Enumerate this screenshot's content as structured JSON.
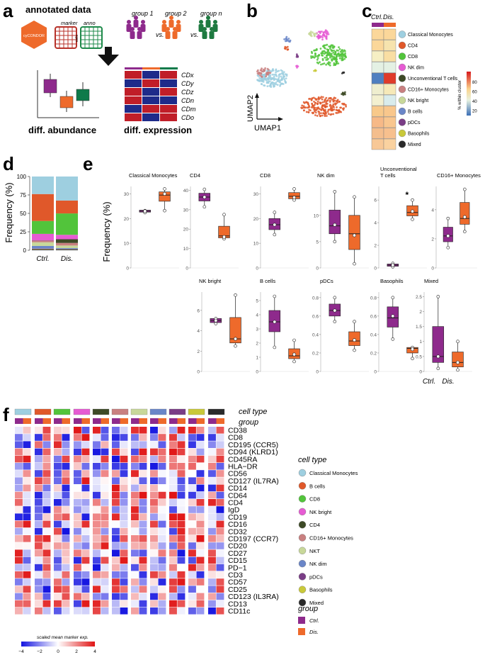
{
  "panel_labels": {
    "a": "a",
    "b": "b",
    "c": "c",
    "d": "d",
    "e": "e",
    "f": "f"
  },
  "panel_a": {
    "title": "annotated data",
    "hex_label": "cyCONDOR",
    "marker_label": "marker",
    "anno_label": "anno",
    "cells_label": "cells",
    "groups": [
      "group 1",
      "group 2",
      "group n"
    ],
    "vs_label": "vs.",
    "diff_abundance_label": "diff. abundance",
    "diff_expression_label": "diff. expression",
    "cd_rows": [
      "CDx",
      "CDy",
      "CDz",
      "CDn",
      "CDm",
      "CDo"
    ]
  },
  "panel_b": {
    "xlabel": "UMAP1",
    "ylabel": "UMAP2"
  },
  "panel_c": {
    "header_ctrl": "Ctrl.",
    "header_dis": "Dis.",
    "legend_title": "% within cluster",
    "scale_ticks": [
      "80",
      "60",
      "40",
      "20"
    ],
    "rows": [
      "Classical Monocytes",
      "CD4",
      "CD8",
      "NK dim",
      "Unconventional T cells",
      "CD16+ Monocytes",
      "NK bright",
      "B cells",
      "pDCs",
      "Basophils",
      "Mixed"
    ],
    "colors": [
      "#9ECFE0",
      "#E0582A",
      "#52C43B",
      "#E65BD3",
      "#3D4A26",
      "#C98080",
      "#C8D89A",
      "#6A86C8",
      "#7A3D86",
      "#C9C93A",
      "#2A2A2A"
    ],
    "ctrl_fill": [
      "#FBD79A",
      "#FBD79A",
      "#F6EFC4",
      "#E4F1E4",
      "#4F7FC0",
      "#EFEECF",
      "#F3F0D0",
      "#F8C98A",
      "#F7B987",
      "#F4BE8D",
      "#F8C896"
    ],
    "dis_fill": [
      "#FBD79A",
      "#F6E3AE",
      "#F9DEA3",
      "#E4F1E4",
      "#E03B2A",
      "#F6E9B8",
      "#D9ECEC",
      "#F9C78C",
      "#F9C68F",
      "#F7C08E",
      "#FAD2A0"
    ]
  },
  "panel_d": {
    "ylabel": "Frequency (%)",
    "yticks": [
      "0",
      "25",
      "50",
      "75",
      "100"
    ],
    "groups": [
      "Ctrl.",
      "Dis."
    ],
    "chart_data": {
      "type": "bar",
      "stacked": true,
      "categories": [
        "Ctrl.",
        "Dis."
      ],
      "ylim": [
        0,
        100
      ],
      "series": [
        {
          "name": "Mixed",
          "values": [
            1,
            1
          ],
          "color": "#2A2A2A"
        },
        {
          "name": "Basophils",
          "values": [
            0.6,
            0.3
          ],
          "color": "#C9C93A"
        },
        {
          "name": "pDCs",
          "values": [
            0.7,
            0.4
          ],
          "color": "#7A3D86"
        },
        {
          "name": "B cells",
          "values": [
            3.5,
            1.2
          ],
          "color": "#6A86C8"
        },
        {
          "name": "NK bright",
          "values": [
            5,
            3.5
          ],
          "color": "#C8D89A"
        },
        {
          "name": "CD16+ Monocytes",
          "values": [
            2.2,
            3.5
          ],
          "color": "#C98080"
        },
        {
          "name": "Unconventional T cells",
          "values": [
            0.2,
            5
          ],
          "color": "#3D4A26"
        },
        {
          "name": "NK dim",
          "values": [
            9,
            6
          ],
          "color": "#E65BD3"
        },
        {
          "name": "CD8",
          "values": [
            17.5,
            29
          ],
          "color": "#52C43B"
        },
        {
          "name": "CD4",
          "values": [
            36.5,
            17.5
          ],
          "color": "#E0582A"
        },
        {
          "name": "Classical Monocytes",
          "values": [
            23.8,
            32.6
          ],
          "color": "#9ECFE0"
        }
      ]
    }
  },
  "panel_e": {
    "ylabel": "Frequency (%)",
    "ctrl_label": "Ctrl.",
    "dis_label": "Dis.",
    "chart_data": {
      "type": "box",
      "groups": [
        "Ctrl.",
        "Dis."
      ],
      "colors": {
        "Ctrl.": "#8E2A8C",
        "Dis.": "#EE6A2B"
      },
      "panels": [
        {
          "title": "Classical Monocytes",
          "yticks": [
            0,
            10,
            20,
            30
          ],
          "ylim": [
            0,
            33
          ],
          "ctrl": {
            "q1": 22.6,
            "med": 23,
            "q3": 23.4,
            "lo": 22.6,
            "hi": 23.4,
            "mean": 23,
            "pts": [
              22.4,
              23.2
            ]
          },
          "dis": {
            "q1": 27,
            "med": 29.5,
            "q3": 30.8,
            "lo": 23.2,
            "hi": 32.0,
            "mean": 30,
            "pts": [
              23.2,
              32.0
            ]
          }
        },
        {
          "title": "CD4",
          "yticks": [
            0,
            10,
            20,
            30,
            40
          ],
          "ylim": [
            0,
            42
          ],
          "ctrl": {
            "q1": 34.5,
            "med": 36.5,
            "q3": 38.5,
            "lo": 31.5,
            "hi": 40.5,
            "mean": 36.5,
            "pts": [
              31.5,
              40.5
            ]
          },
          "dis": {
            "q1": 15.5,
            "med": 16.5,
            "q3": 21.5,
            "lo": 15.0,
            "hi": 27.5,
            "mean": 16,
            "pts": [
              15.0,
              27.5
            ]
          }
        },
        {
          "title": "CD8",
          "yticks": [
            0,
            10,
            20,
            30
          ],
          "ylim": [
            0,
            33
          ],
          "ctrl": {
            "q1": 15.5,
            "med": 17.5,
            "q3": 20,
            "lo": 13.5,
            "hi": 22.5,
            "mean": 17.5,
            "pts": [
              13.5,
              22.5
            ]
          },
          "dis": {
            "q1": 28,
            "med": 29,
            "q3": 30.5,
            "lo": 27.5,
            "hi": 32,
            "mean": 28.5,
            "pts": [
              27.5,
              32.0
            ]
          }
        },
        {
          "title": "NK dim",
          "yticks": [
            0,
            5,
            10
          ],
          "ylim": [
            0,
            15.5
          ],
          "ctrl": {
            "q1": 6.5,
            "med": 8,
            "q3": 11,
            "lo": 5,
            "hi": 14.5,
            "mean": 8.2,
            "pts": [
              5,
              14.5
            ]
          },
          "dis": {
            "q1": 3.5,
            "med": 6.5,
            "q3": 10,
            "lo": 0.8,
            "hi": 13.5,
            "mean": 6.2,
            "pts": [
              0.8,
              13.5
            ]
          }
        },
        {
          "title": "Unconventional T cells",
          "title_extra": "T cells",
          "title_main": "Unconventional",
          "yticks": [
            0,
            2,
            4,
            6
          ],
          "ylim": [
            0,
            7.2
          ],
          "annotation": "*",
          "ctrl": {
            "q1": 0.15,
            "med": 0.25,
            "q3": 0.35,
            "lo": 0.1,
            "hi": 0.4,
            "mean": 0.25,
            "pts": [
              0.1,
              0.4
            ]
          },
          "dis": {
            "q1": 4.6,
            "med": 4.9,
            "q3": 5.5,
            "lo": 4.3,
            "hi": 6.0,
            "mean": 5.0,
            "pts": [
              4.3,
              6.0
            ]
          }
        },
        {
          "title": "CD16+ Monocytes",
          "yticks": [
            0,
            2,
            4
          ],
          "ylim": [
            0,
            5.6
          ],
          "ctrl": {
            "q1": 1.8,
            "med": 2.2,
            "q3": 2.8,
            "lo": 1.4,
            "hi": 3.4,
            "mean": 2.2,
            "pts": [
              1.4,
              3.4
            ]
          },
          "dis": {
            "q1": 3.0,
            "med": 3.4,
            "q3": 4.5,
            "lo": 2.5,
            "hi": 5.4,
            "mean": 3.5,
            "pts": [
              2.5,
              5.4
            ]
          }
        },
        {
          "title": "NK bright",
          "yticks": [
            0,
            2,
            4,
            6
          ],
          "ylim": [
            0,
            7.8
          ],
          "ctrl": {
            "q1": 4.8,
            "med": 5.0,
            "q3": 5.2,
            "lo": 4.7,
            "hi": 5.2,
            "mean": 5.0,
            "pts": [
              4.7,
              5.2
            ]
          },
          "dis": {
            "q1": 2.8,
            "med": 3.2,
            "q3": 5.3,
            "lo": 2.5,
            "hi": 7.5,
            "mean": 3.2,
            "pts": [
              2.5,
              7.5
            ]
          }
        },
        {
          "title": "B cells",
          "yticks": [
            0,
            1,
            2,
            3,
            4,
            5
          ],
          "ylim": [
            0,
            5.6
          ],
          "ctrl": {
            "q1": 2.8,
            "med": 3.5,
            "q3": 4.3,
            "lo": 1.7,
            "hi": 5.3,
            "mean": 3.5,
            "pts": [
              1.7,
              5.3
            ]
          },
          "dis": {
            "q1": 0.9,
            "med": 1.1,
            "q3": 1.6,
            "lo": 0.7,
            "hi": 2.2,
            "mean": 1.2,
            "pts": [
              0.7,
              2.2
            ]
          }
        },
        {
          "title": "pDCs",
          "yticks": [
            0,
            0.2,
            0.4,
            0.6,
            0.8
          ],
          "ylim": [
            0,
            0.86
          ],
          "ctrl": {
            "q1": 0.6,
            "med": 0.66,
            "q3": 0.73,
            "lo": 0.54,
            "hi": 0.8,
            "mean": 0.66,
            "pts": [
              0.54,
              0.8
            ]
          },
          "dis": {
            "q1": 0.28,
            "med": 0.33,
            "q3": 0.43,
            "lo": 0.23,
            "hi": 0.54,
            "mean": 0.34,
            "pts": [
              0.23,
              0.54
            ]
          }
        },
        {
          "title": "Basophils",
          "yticks": [
            0,
            0.2,
            0.4,
            0.6,
            0.8
          ],
          "ylim": [
            0,
            0.86
          ],
          "ctrl": {
            "q1": 0.48,
            "med": 0.58,
            "q3": 0.7,
            "lo": 0.35,
            "hi": 0.8,
            "mean": 0.6,
            "pts": [
              0.35,
              0.8
            ]
          },
          "dis": {
            "q1": 0.2,
            "med": 0.25,
            "q3": 0.26,
            "lo": 0.14,
            "hi": 0.26,
            "mean": 0.24,
            "pts": [
              0.14,
              0.26
            ]
          }
        },
        {
          "title": "Mixed",
          "yticks": [
            0,
            0.5,
            1,
            1.5,
            2,
            2.5
          ],
          "ylim": [
            0,
            2.65
          ],
          "ctrl": {
            "q1": 0.3,
            "med": 0.5,
            "q3": 1.5,
            "lo": 0.1,
            "hi": 2.5,
            "mean": 0.5,
            "pts": [
              0.1,
              2.5
            ]
          },
          "dis": {
            "q1": 0.15,
            "med": 0.3,
            "q3": 0.65,
            "lo": 0.05,
            "hi": 1.0,
            "mean": 0.3,
            "pts": [
              0.05,
              1.0
            ]
          }
        }
      ]
    }
  },
  "panel_f": {
    "cell_type_label": "cell type",
    "group_label": "group",
    "markers": [
      "CD38",
      "CD8",
      "CD195 (CCR5)",
      "CD94 (KLRD1)",
      "CD45RA",
      "HLA−DR",
      "CD56",
      "CD127 (IL7RA)",
      "CD14",
      "CD64",
      "CD4",
      "IgD",
      "CD19",
      "CD16",
      "CD32",
      "CD197 (CCR7)",
      "CD20",
      "CD27",
      "CD15",
      "PD−1",
      "CD3",
      "CD57",
      "CD25",
      "CD123 (IL3RA)",
      "CD13",
      "CD11c"
    ],
    "legend_cell_type_title": "cell type",
    "legend_cell_types": [
      "Classical Monocytes",
      "B cells",
      "CD8",
      "NK bright",
      "CD4",
      "CD16+ Monocytes",
      "NKT",
      "NK dim",
      "pDCs",
      "Basophils",
      "Mixed"
    ],
    "legend_cell_colors": [
      "#9ECFE0",
      "#E0582A",
      "#52C43B",
      "#E65BD3",
      "#3D4A26",
      "#C98080",
      "#C8D89A",
      "#6A86C8",
      "#7A3D86",
      "#C9C93A",
      "#2A2A2A"
    ],
    "legend_group_title": "group",
    "legend_groups": [
      "Ctrl.",
      "Dis."
    ],
    "legend_group_colors": [
      "#8E2A8C",
      "#EE6A2B"
    ],
    "scale_label": "scaled mean marker exp.",
    "scale_ticks": [
      "−4",
      "−2",
      "0",
      "2",
      "4"
    ],
    "column_colors": [
      "#9ECFE0",
      "#E0582A",
      "#52C43B",
      "#E65BD3",
      "#3D4A26",
      "#C98080",
      "#C8D89A",
      "#6A86C8",
      "#7A3D86",
      "#C9C93A",
      "#2A2A2A"
    ]
  }
}
